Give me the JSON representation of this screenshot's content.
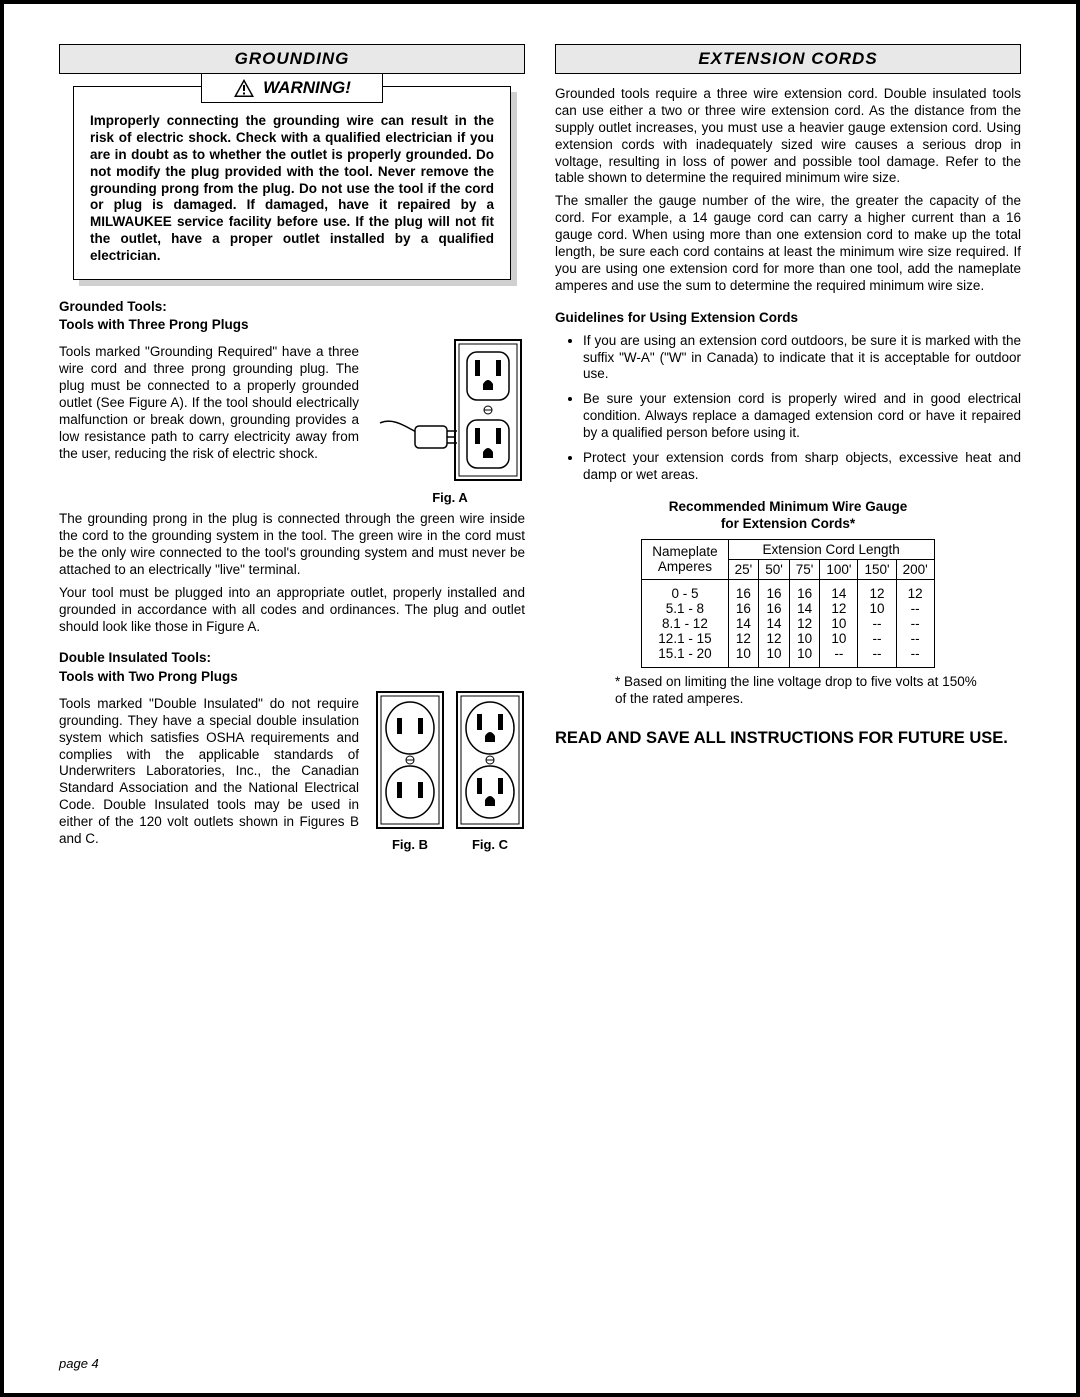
{
  "left": {
    "header": "GROUNDING",
    "warning_label": "WARNING!",
    "warning_body": "Improperly connecting the grounding wire can result in the risk of electric shock. Check with a qualified electrician if you are in doubt as to whether the outlet is properly grounded. Do not modify the plug provided with the tool. Never remove the grounding prong from the plug. Do not use the tool if the cord or plug is damaged. If damaged, have it repaired by a MILWAUKEE service facility before use. If the plug will not fit the outlet, have a proper outlet installed by a qualified electrician.",
    "sub1_a": "Grounded Tools:",
    "sub1_b": "Tools with Three Prong Plugs",
    "p1": "Tools marked \"Grounding Required\" have a three wire cord and three prong grounding plug. The plug must be connected to a properly grounded outlet (See Figure A). If the tool should electrically malfunction or break down, grounding provides a low resistance path to carry electricity away from the user, reducing the risk of electric shock.",
    "figA": "Fig. A",
    "p2": "The grounding prong in the plug is connected through the green wire inside the cord to the grounding system in the tool. The green wire in the cord must be the only wire connected to the tool's grounding system and must never be attached to an electrically \"live\" terminal.",
    "p3": "Your tool must be plugged into an appropriate outlet, properly installed and grounded in accordance with all codes and ordinances. The plug and outlet should look like those in Figure A.",
    "sub2_a": "Double Insulated Tools:",
    "sub2_b": "Tools with Two Prong Plugs",
    "p4": "Tools marked \"Double Insulated\" do not require grounding. They have a special double insulation system which satisfies OSHA requirements and complies with the applicable standards of Underwriters Laboratories, Inc., the Canadian Standard Association and the National Electrical Code. Double Insulated tools may be used in either of the 120 volt outlets shown in Figures B and C.",
    "figB": "Fig. B",
    "figC": "Fig. C"
  },
  "right": {
    "header": "EXTENSION CORDS",
    "p1": "Grounded tools require a three wire extension cord. Double insulated tools can use either a two or three wire extension cord. As the distance from the supply outlet increases, you must use a heavier gauge extension cord. Using extension cords with inadequately sized wire causes a serious drop in voltage, resulting in loss of power and possible tool damage. Refer to the table shown to determine the required minimum wire size.",
    "p2": "The smaller the gauge number of the wire, the greater the capacity of the cord. For example, a 14 gauge cord can carry a higher current than a 16 gauge cord. When using more than one extension cord to make up the total length, be sure each cord contains at least the minimum wire size required. If you are using one extension cord for more than one tool, add the nameplate amperes and use the sum to determine the required minimum wire size.",
    "sub1": "Guidelines for Using Extension Cords",
    "b1": "If you are using an extension cord outdoors, be sure it is marked with the suffix \"W-A\" (\"W\" in Canada) to indicate that it is acceptable for outdoor use.",
    "b2": "Be sure your extension cord is properly wired and in good electrical condition. Always replace a damaged extension cord or have it repaired by a qualified person before using it.",
    "b3": "Protect your extension cords from sharp objects, excessive heat and damp or wet areas.",
    "table_title_a": "Recommended Minimum Wire Gauge",
    "table_title_b": "for Extension Cords*",
    "th_np1": "Nameplate",
    "th_np2": "Amperes",
    "th_len": "Extension Cord Length",
    "lens": [
      "25'",
      "50'",
      "75'",
      "100'",
      "150'",
      "200'"
    ],
    "rows": [
      {
        "amp": "0 - 5",
        "v": [
          "16",
          "16",
          "16",
          "14",
          "12",
          "12"
        ]
      },
      {
        "amp": "5.1 - 8",
        "v": [
          "16",
          "16",
          "14",
          "12",
          "10",
          "--"
        ]
      },
      {
        "amp": "8.1 - 12",
        "v": [
          "14",
          "14",
          "12",
          "10",
          "--",
          "--"
        ]
      },
      {
        "amp": "12.1 - 15",
        "v": [
          "12",
          "12",
          "10",
          "10",
          "--",
          "--"
        ]
      },
      {
        "amp": "15.1 - 20",
        "v": [
          "10",
          "10",
          "10",
          "--",
          "--",
          "--"
        ]
      }
    ],
    "note": "* Based on limiting the line voltage drop to five volts at 150% of the rated amperes.",
    "final": "READ AND SAVE ALL INSTRUCTIONS FOR FUTURE USE."
  },
  "page_label": "page 4",
  "colors": {
    "header_bg": "#e8e8e8",
    "border": "#000000",
    "shadow": "#d0d0d0"
  }
}
